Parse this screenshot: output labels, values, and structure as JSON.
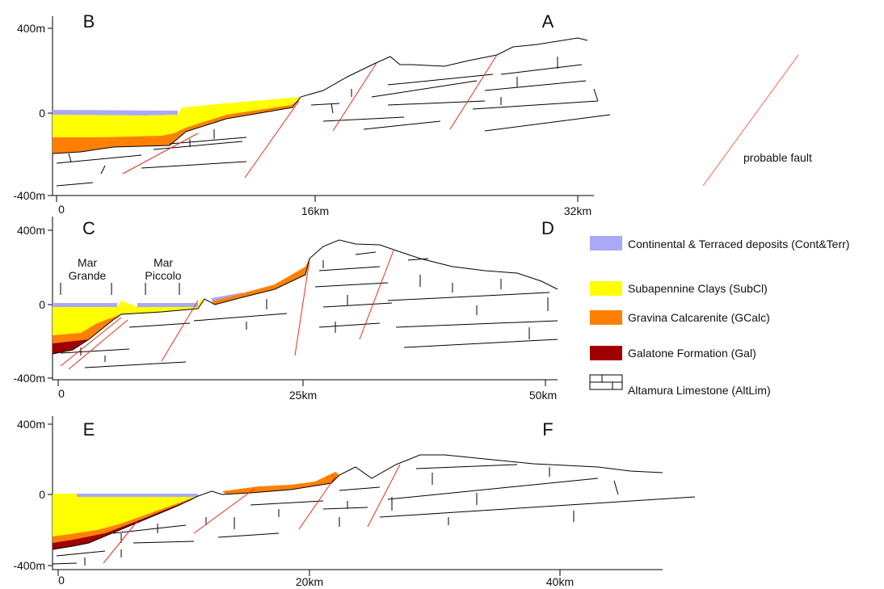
{
  "sections": [
    {
      "left_label": "B",
      "right_label": "A",
      "y_labels": [
        "400m",
        "0",
        "-400m"
      ],
      "x_labels": [
        "0",
        "16km",
        "32km"
      ]
    },
    {
      "left_label": "C",
      "right_label": "D",
      "y_labels": [
        "400m",
        "0",
        "-400m"
      ],
      "x_labels": [
        "0",
        "25km",
        "50km"
      ],
      "annotations": [
        "Mar Grande",
        "Mar Piccolo"
      ]
    },
    {
      "left_label": "E",
      "right_label": "F",
      "y_labels": [
        "400m",
        "0",
        "-400m"
      ],
      "x_labels": [
        "0",
        "20km",
        "40km"
      ]
    }
  ],
  "fault_legend": "probable fault",
  "legend": [
    "Continental & Terraced deposits (Cont&Terr)",
    "Subapennine Clays (SubCl)",
    "Gravina Calcarenite (GCalc)",
    "Galatone Formation (Gal)",
    "Altamura Limestone (AltLim)"
  ]
}
